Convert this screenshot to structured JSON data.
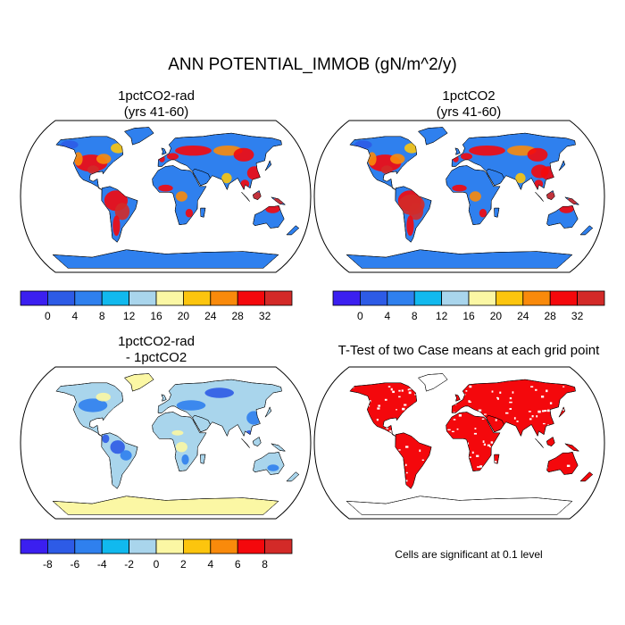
{
  "title": "ANN POTENTIAL_IMMOB (gN/m^2/y)",
  "panels": [
    {
      "title_line1": "1pctCO2-rad",
      "title_line2": "(yrs 41-60)"
    },
    {
      "title_line1": "1pctCO2",
      "title_line2": "(yrs 41-60)"
    },
    {
      "title_line1": "1pctCO2-rad",
      "title_line2": "- 1pctCO2"
    },
    {
      "title_line1": "T-Test of two Case means at each grid point",
      "title_line2": ""
    }
  ],
  "colorbar_abs": {
    "colors": [
      "#3b1ff0",
      "#2d5be6",
      "#2f80ee",
      "#11b9ee",
      "#a9d5ec",
      "#fbf7a4",
      "#fcc50e",
      "#f98a0b",
      "#f4080c",
      "#d32a28"
    ],
    "tick_labels": [
      "0",
      "4",
      "8",
      "12",
      "16",
      "20",
      "24",
      "28",
      "32"
    ]
  },
  "colorbar_diff": {
    "colors": [
      "#3b1ff0",
      "#2d5be6",
      "#2f80ee",
      "#11b9ee",
      "#a9d5ec",
      "#fbf7a4",
      "#fcc50e",
      "#f98a0b",
      "#f4080c",
      "#d32a28"
    ],
    "tick_labels": [
      "-8",
      "-6",
      "-4",
      "-2",
      "0",
      "2",
      "4",
      "6",
      "8"
    ]
  },
  "ttest_note": "Cells are significant at 0.1 level",
  "map_colors": {
    "ocean": "#ffffff",
    "abs_base": "#2f80ee",
    "abs_deep": "#2d5be6",
    "abs_hot": "#f4080c",
    "abs_warm": "#f98a0b",
    "abs_dark": "#d32a28",
    "abs_yellow": "#fcc50e",
    "diff_base": "#a9d5ec",
    "diff_blue": "#2f80ee",
    "diff_deep": "#2d5be6",
    "diff_yellow": "#fbf7a4",
    "sig": "#f4080c"
  }
}
